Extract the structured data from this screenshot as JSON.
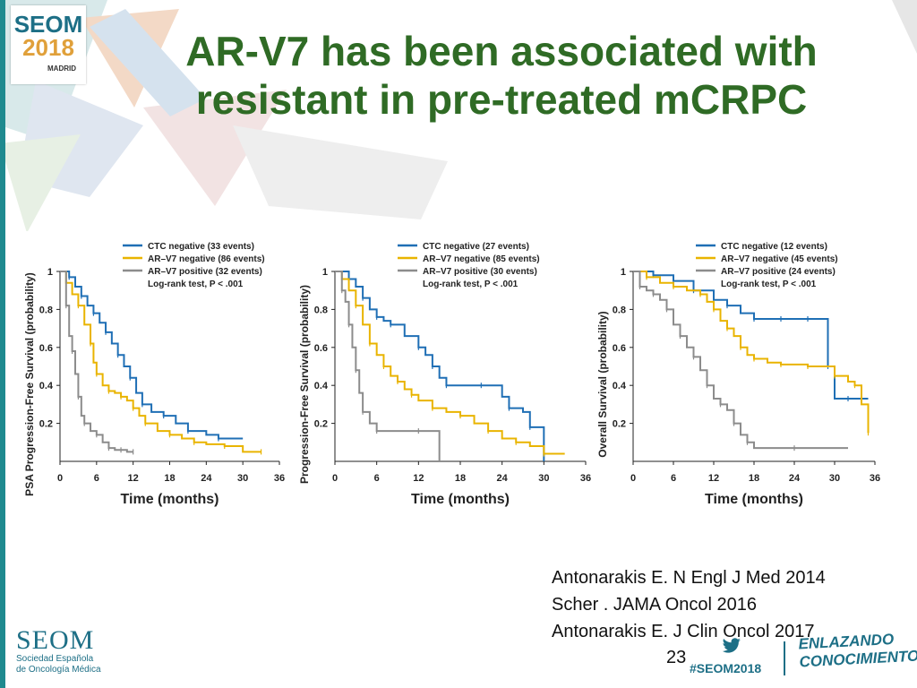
{
  "slide": {
    "title_line1": "AR-V7 has been associated with",
    "title_line2": "resistant in pre-treated mCRPC",
    "page_number": "23"
  },
  "logo": {
    "seom": "SEOM",
    "year": "2018",
    "city": "MADRID"
  },
  "footer": {
    "seom": "SEOM",
    "society_line1": "Sociedad Española",
    "society_line2": "de Oncología Médica",
    "hashtag": "#SEOM2018",
    "slogan_line1": "ENLAZANDO",
    "slogan_line2": "CONOCIMIENTO"
  },
  "references": [
    "Antonarakis E. N Engl J Med 2014",
    "Scher . JAMA Oncol 2016",
    "Antonarakis E. J Clin Oncol 2017"
  ],
  "colors": {
    "title": "#2f6b25",
    "ctc_negative": "#1f6fb5",
    "arv7_negative": "#e9b400",
    "arv7_positive": "#8c8c8c"
  },
  "chart_data": [
    {
      "type": "line",
      "step": true,
      "ylabel": "PSA Progression-Free Survival (probability)",
      "xlabel": "Time (months)",
      "xticks": [
        "0",
        "6",
        "12",
        "18",
        "24",
        "30",
        "36"
      ],
      "yticks": [
        "0.2",
        "0.4",
        "0.6",
        "0.8",
        "1"
      ],
      "xlim": [
        0,
        36
      ],
      "ylim": [
        0,
        1
      ],
      "legend": [
        "CTC negative (33 events)",
        "AR–V7 negative (86 events)",
        "AR–V7 positive (32 events)",
        "Log-rank test, P < .001"
      ],
      "series": [
        {
          "name": "CTC negative (33 events)",
          "color": "#1f6fb5",
          "x": [
            0,
            1.5,
            2.5,
            3.5,
            4.5,
            5.5,
            6.5,
            7.5,
            8.5,
            9.5,
            10.5,
            11.5,
            12.5,
            13.5,
            15,
            17,
            19,
            21,
            24,
            26,
            30
          ],
          "y": [
            1,
            0.97,
            0.92,
            0.87,
            0.82,
            0.78,
            0.73,
            0.68,
            0.62,
            0.56,
            0.5,
            0.44,
            0.36,
            0.3,
            0.26,
            0.24,
            0.2,
            0.16,
            0.14,
            0.12,
            0.12
          ]
        },
        {
          "name": "AR–V7 negative (86 events)",
          "color": "#e9b400",
          "x": [
            0,
            1,
            2,
            3,
            4,
            5,
            5.5,
            6,
            7,
            8,
            9,
            10,
            11,
            12,
            13,
            14,
            16,
            18,
            20,
            22,
            24,
            27,
            30,
            33
          ],
          "y": [
            1,
            0.94,
            0.88,
            0.82,
            0.72,
            0.62,
            0.52,
            0.46,
            0.4,
            0.37,
            0.36,
            0.34,
            0.32,
            0.28,
            0.24,
            0.2,
            0.16,
            0.14,
            0.12,
            0.1,
            0.09,
            0.08,
            0.05,
            0.05
          ]
        },
        {
          "name": "AR–V7 positive (32 events)",
          "color": "#8c8c8c",
          "x": [
            0,
            1,
            1.5,
            2,
            2.5,
            3,
            3.5,
            4,
            5,
            6,
            7,
            8,
            9,
            10,
            11,
            12
          ],
          "y": [
            1,
            0.82,
            0.66,
            0.58,
            0.46,
            0.34,
            0.24,
            0.2,
            0.16,
            0.14,
            0.1,
            0.07,
            0.06,
            0.06,
            0.05,
            0.05
          ]
        }
      ]
    },
    {
      "type": "line",
      "step": true,
      "ylabel": "Progression-Free Survival (probability)",
      "xlabel": "Time (months)",
      "xticks": [
        "0",
        "6",
        "12",
        "18",
        "24",
        "30",
        "36"
      ],
      "yticks": [
        "0.2",
        "0.4",
        "0.6",
        "0.8",
        "1"
      ],
      "xlim": [
        0,
        36
      ],
      "ylim": [
        0,
        1
      ],
      "legend": [
        "CTC negative (27 events)",
        "AR–V7 negative (85 events)",
        "AR–V7 positive (30 events)",
        "Log-rank test, P < .001"
      ],
      "series": [
        {
          "name": "CTC negative (27 events)",
          "color": "#1f6fb5",
          "x": [
            0,
            2,
            3,
            4,
            5,
            6,
            7,
            8,
            10,
            12,
            13,
            14,
            15,
            16,
            18,
            21,
            24,
            25,
            27,
            28,
            30
          ],
          "y": [
            1,
            0.96,
            0.92,
            0.86,
            0.8,
            0.76,
            0.74,
            0.72,
            0.66,
            0.6,
            0.56,
            0.5,
            0.44,
            0.4,
            0.4,
            0.4,
            0.34,
            0.28,
            0.26,
            0.18,
            0
          ]
        },
        {
          "name": "AR–V7 negative (85 events)",
          "color": "#e9b400",
          "x": [
            0,
            1,
            2,
            3,
            4,
            5,
            6,
            7,
            8,
            9,
            10,
            11,
            12,
            14,
            16,
            18,
            20,
            22,
            24,
            26,
            28,
            30,
            33
          ],
          "y": [
            1,
            0.96,
            0.9,
            0.82,
            0.72,
            0.62,
            0.56,
            0.5,
            0.45,
            0.42,
            0.38,
            0.35,
            0.32,
            0.28,
            0.26,
            0.24,
            0.2,
            0.16,
            0.12,
            0.1,
            0.08,
            0.04,
            0.04
          ]
        },
        {
          "name": "AR–V7 positive (30 events)",
          "color": "#8c8c8c",
          "x": [
            0,
            1,
            1.5,
            2,
            2.5,
            3,
            3.5,
            4,
            5,
            6,
            9,
            12,
            15
          ],
          "y": [
            1,
            0.9,
            0.84,
            0.72,
            0.6,
            0.48,
            0.36,
            0.26,
            0.2,
            0.16,
            0.16,
            0.16,
            0
          ]
        }
      ]
    },
    {
      "type": "line",
      "step": true,
      "ylabel": "Overall Survival (probability)",
      "xlabel": "Time (months)",
      "xticks": [
        "0",
        "6",
        "12",
        "18",
        "24",
        "30",
        "36"
      ],
      "yticks": [
        "0.2",
        "0.4",
        "0.6",
        "0.8",
        "1"
      ],
      "xlim": [
        0,
        36
      ],
      "ylim": [
        0,
        1
      ],
      "legend": [
        "CTC negative (12 events)",
        "AR–V7 negative (45 events)",
        "AR–V7 positive (24 events)",
        "Log-rank test, P < .001"
      ],
      "series": [
        {
          "name": "CTC negative (12 events)",
          "color": "#1f6fb5",
          "x": [
            0,
            3,
            6,
            9,
            12,
            14,
            16,
            18,
            20,
            22,
            24,
            26,
            28,
            29,
            30,
            32,
            35
          ],
          "y": [
            1,
            0.98,
            0.95,
            0.9,
            0.85,
            0.82,
            0.78,
            0.75,
            0.75,
            0.75,
            0.75,
            0.75,
            0.75,
            0.5,
            0.33,
            0.33,
            0.33
          ]
        },
        {
          "name": "AR–V7 negative (45 events)",
          "color": "#e9b400",
          "x": [
            0,
            2,
            4,
            6,
            8,
            10,
            11,
            12,
            13,
            14,
            15,
            16,
            17,
            18,
            20,
            22,
            24,
            26,
            28,
            30,
            32,
            33,
            34,
            35
          ],
          "y": [
            1,
            0.97,
            0.94,
            0.92,
            0.9,
            0.88,
            0.84,
            0.8,
            0.74,
            0.7,
            0.66,
            0.6,
            0.56,
            0.54,
            0.52,
            0.51,
            0.51,
            0.5,
            0.5,
            0.45,
            0.42,
            0.4,
            0.3,
            0.15
          ]
        },
        {
          "name": "AR–V7 positive (24 events)",
          "color": "#8c8c8c",
          "x": [
            0,
            1,
            2,
            3,
            4,
            5,
            6,
            7,
            8,
            9,
            10,
            11,
            12,
            13,
            14,
            15,
            16,
            17,
            18,
            24,
            32
          ],
          "y": [
            1,
            0.92,
            0.9,
            0.88,
            0.85,
            0.8,
            0.72,
            0.66,
            0.6,
            0.55,
            0.48,
            0.4,
            0.33,
            0.3,
            0.27,
            0.2,
            0.14,
            0.1,
            0.07,
            0.07,
            0.07
          ]
        }
      ]
    }
  ]
}
